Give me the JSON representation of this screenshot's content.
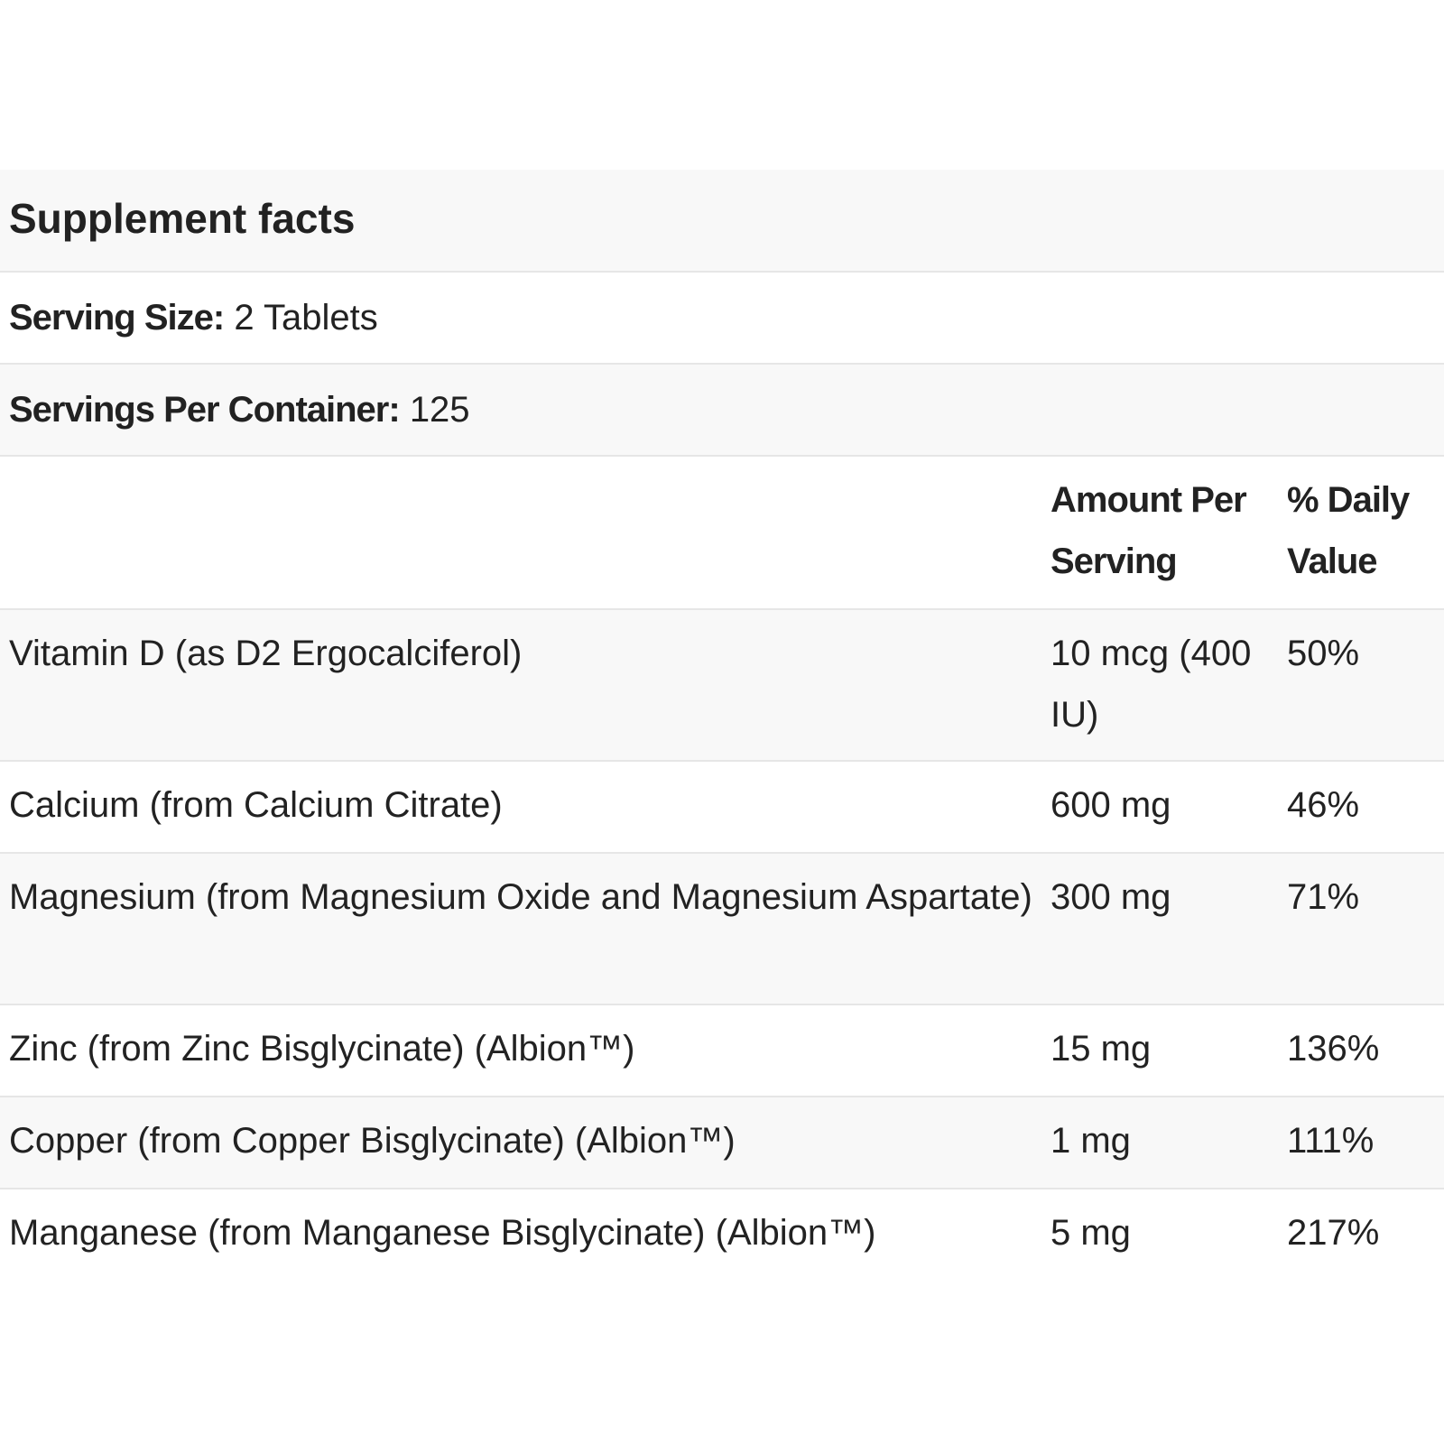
{
  "title": "Supplement facts",
  "serving_size": {
    "label": "Serving Size:",
    "value": "2 Tablets"
  },
  "servings_per_container": {
    "label": "Servings Per Container:",
    "value": "125"
  },
  "columns": {
    "amount": "Amount Per Serving",
    "daily_value": "% Daily Value"
  },
  "rows": [
    {
      "name": "Vitamin D (as D2 Ergocalciferol)",
      "amount": "10 mcg (400 IU)",
      "dv": "50%"
    },
    {
      "name": "Calcium (from Calcium Citrate)",
      "amount": "600 mg",
      "dv": "46%"
    },
    {
      "name": "Magnesium (from Magnesium Oxide and Magnesium Aspartate)",
      "amount": "300 mg",
      "dv": "71%"
    },
    {
      "name": "Zinc (from Zinc Bisglycinate) (Albion™)",
      "amount": "15 mg",
      "dv": "136%"
    },
    {
      "name": "Copper (from Copper Bisglycinate) (Albion™)",
      "amount": "1 mg",
      "dv": "111%"
    },
    {
      "name": "Manganese (from Manganese Bisglycinate) (Albion™)",
      "amount": "5 mg",
      "dv": "217%"
    }
  ]
}
